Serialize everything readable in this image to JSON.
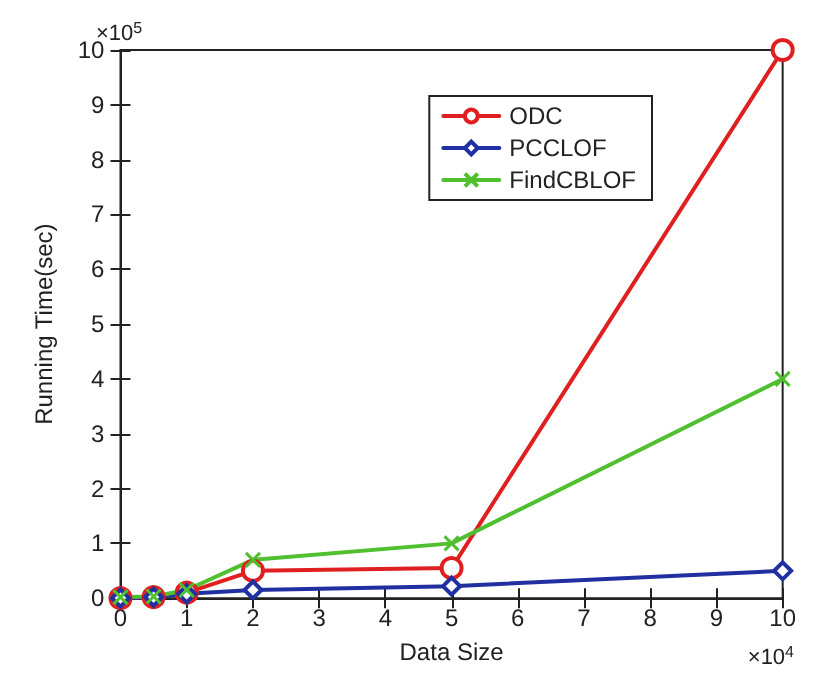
{
  "chart_data": {
    "type": "line",
    "xlabel": "Data Size",
    "ylabel": "Running Time(sec)",
    "x": [
      0,
      0.5,
      1,
      2,
      5,
      10
    ],
    "series": [
      {
        "name": "ODC",
        "color": "#e02020",
        "marker": "circle",
        "values": [
          0,
          0.02,
          0.1,
          0.5,
          0.55,
          10
        ]
      },
      {
        "name": "PCCLOF",
        "color": "#2030a0",
        "marker": "diamond",
        "values": [
          0,
          0.02,
          0.08,
          0.15,
          0.22,
          0.5
        ]
      },
      {
        "name": "FindCBLOF",
        "color": "#50c030",
        "marker": "cross",
        "values": [
          0.02,
          0.03,
          0.15,
          0.7,
          1.0,
          4.0
        ]
      }
    ],
    "xlim": [
      0,
      10
    ],
    "xticks": [
      0,
      1,
      2,
      3,
      4,
      5,
      6,
      7,
      8,
      9,
      10
    ],
    "ylim": [
      0,
      10
    ],
    "yticks": [
      0,
      1,
      2,
      3,
      4,
      5,
      6,
      7,
      8,
      9,
      10
    ],
    "annotations": [
      "×10$^{5}$",
      "×10$^{4}$"
    ],
    "grid": false,
    "legend": "top right",
    "line_style": "solid"
  }
}
